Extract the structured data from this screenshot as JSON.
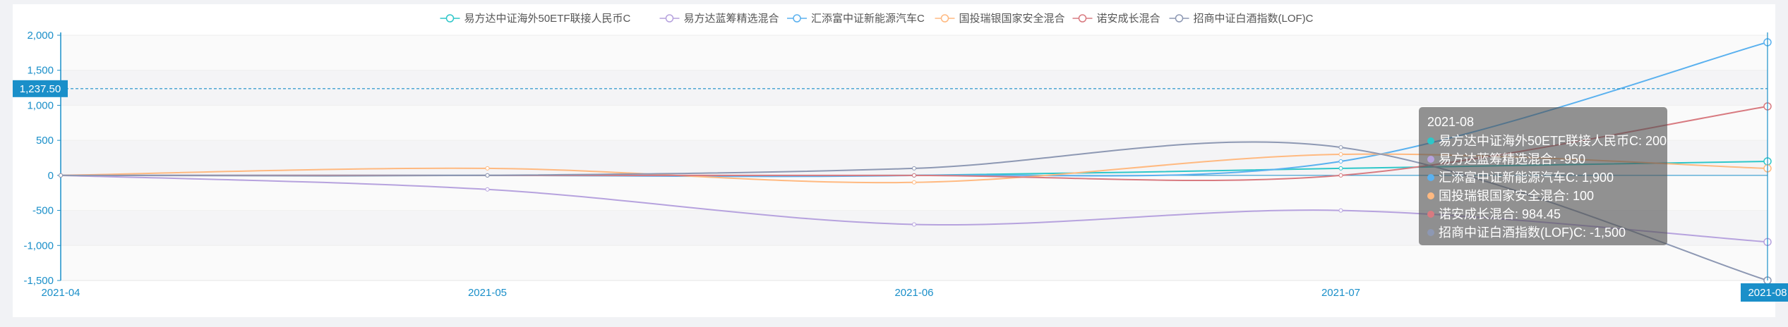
{
  "chart_data": {
    "type": "line",
    "title": "",
    "xlabel": "",
    "ylabel": "",
    "categories": [
      "2021-04",
      "2021-05",
      "2021-06",
      "2021-07",
      "2021-08"
    ],
    "ylim": [
      -1500,
      2000
    ],
    "yticks": [
      2000,
      1500,
      1000,
      500,
      0,
      -500,
      -1000,
      -1500
    ],
    "ytick_labels": [
      "2,000",
      "1,500",
      "1,000",
      "500",
      "0",
      "-500",
      "-1,000",
      "-1,500"
    ],
    "grid": "horizontal bands",
    "legend_position": "top-center",
    "series": [
      {
        "name": "易方达中证海外50ETF联接人民币C",
        "color": "#2ec7c9",
        "values": [
          0,
          0,
          0,
          100,
          200
        ]
      },
      {
        "name": "易方达蓝筹精选混合",
        "color": "#b6a2de",
        "values": [
          0,
          -200,
          -700,
          -500,
          -950
        ]
      },
      {
        "name": "汇添富中证新能源汽车C",
        "color": "#5ab1ef",
        "values": [
          0,
          0,
          0,
          200,
          1900
        ]
      },
      {
        "name": "国投瑞银国家安全混合",
        "color": "#ffb980",
        "values": [
          0,
          100,
          -100,
          300,
          100
        ]
      },
      {
        "name": "诺安成长混合",
        "color": "#d87a80",
        "values": [
          0,
          0,
          0,
          0,
          984.45
        ]
      },
      {
        "name": "招商中证白酒指数(LOF)C",
        "color": "#8d98b3",
        "values": [
          0,
          0,
          100,
          400,
          -1500
        ]
      }
    ],
    "crosshair": {
      "y_value": 1237.5,
      "y_label": "1,237.50",
      "x_label": "2021-08"
    },
    "tooltip": {
      "title": "2021-08",
      "lines": [
        "易方达中证海外50ETF联接人民币C: 200",
        "易方达蓝筹精选混合: -950",
        "汇添富中证新能源汽车C: 1,900",
        "国投瑞银国家安全混合: 100",
        "诺安成长混合: 984.45",
        "招商中证白酒指数(LOF)C: -1,500"
      ]
    }
  }
}
